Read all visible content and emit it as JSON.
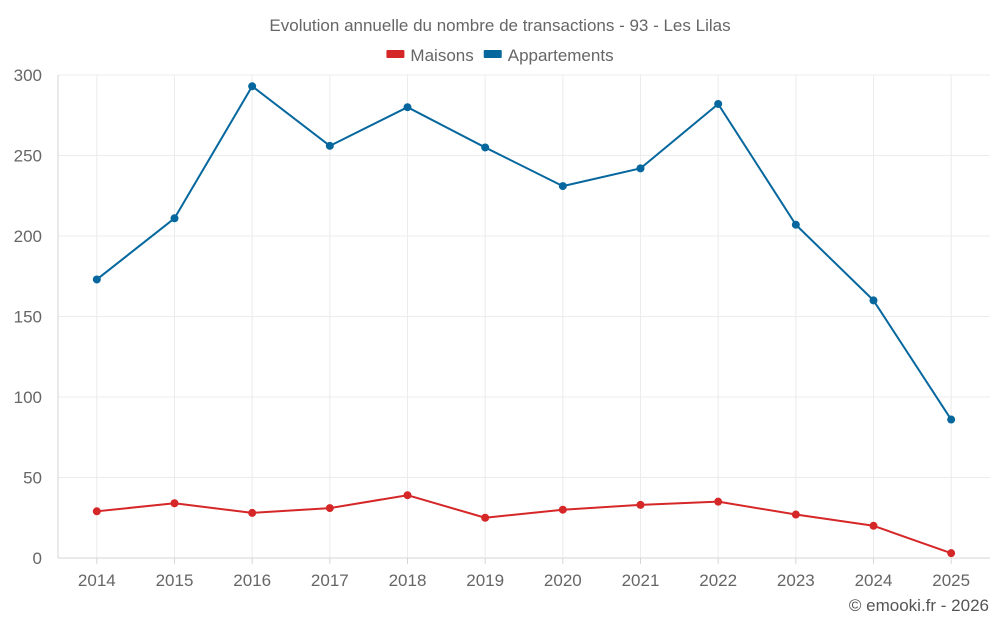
{
  "chart_data": {
    "type": "line",
    "title": "Evolution annuelle du nombre de transactions - 93 - Les Lilas",
    "xlabel": "",
    "ylabel": "",
    "categories": [
      "2014",
      "2015",
      "2016",
      "2017",
      "2018",
      "2019",
      "2020",
      "2021",
      "2022",
      "2023",
      "2024",
      "2025"
    ],
    "ylim": [
      0,
      300
    ],
    "yticks": [
      0,
      50,
      100,
      150,
      200,
      250,
      300
    ],
    "grid": true,
    "legend_position": "top-center",
    "series": [
      {
        "name": "Maisons",
        "color": "#d62728",
        "values": [
          29,
          34,
          28,
          31,
          39,
          25,
          30,
          33,
          35,
          27,
          20,
          3
        ]
      },
      {
        "name": "Appartements",
        "color": "#05679d",
        "values": [
          173,
          211,
          293,
          256,
          280,
          255,
          231,
          242,
          282,
          207,
          160,
          86
        ]
      }
    ]
  },
  "footer": {
    "credit": "© emooki.fr - 2026"
  }
}
